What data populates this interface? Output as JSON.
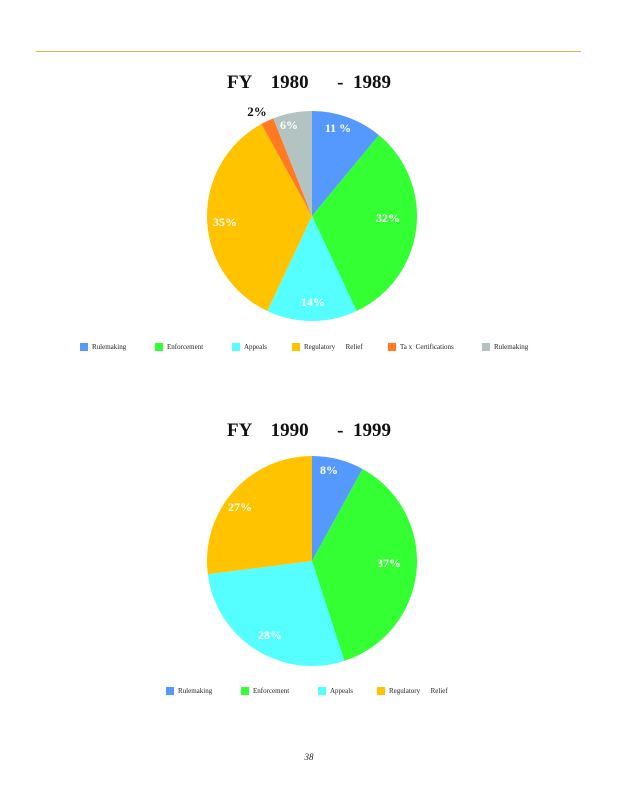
{
  "page_number": "38",
  "chart_data": [
    {
      "type": "pie",
      "title": "FY    1980      -  1989",
      "slices": [
        {
          "category": "Rulemaking",
          "value": 11,
          "label": "11 %",
          "color": "#5599ff"
        },
        {
          "category": "Enforcement",
          "value": 32,
          "label": "32%",
          "color": "#33ff33"
        },
        {
          "category": "Appeals",
          "value": 14,
          "label": "14%",
          "color": "#55ffff"
        },
        {
          "category": "Regulatory Relief",
          "value": 35,
          "label": "35%",
          "color": "#ffc300"
        },
        {
          "category": "Tax Certifications",
          "value": 2,
          "label": "2%",
          "color": "#ff7a22"
        },
        {
          "category": "Rulemaking",
          "value": 6,
          "label": "6%",
          "color": "#b3c3c1"
        }
      ],
      "legend": [
        {
          "label": "Rulemaking",
          "color": "#5599ff"
        },
        {
          "label": "Enforcement",
          "color": "#33ff33"
        },
        {
          "label": "Appeals",
          "color": "#55ffff"
        },
        {
          "label": "Regulatory      Relief",
          "color": "#ffc300"
        },
        {
          "label": "Ta x  Certifications",
          "color": "#ff7a22"
        },
        {
          "label": "Rulemaking",
          "color": "#b3c3c1"
        }
      ],
      "legend_position": "bottom"
    },
    {
      "type": "pie",
      "title": "FY    1990      -  1999",
      "slices": [
        {
          "category": "Rulemaking",
          "value": 8,
          "label": "8%",
          "color": "#5599ff"
        },
        {
          "category": "Enforcement",
          "value": 37,
          "label": "37%",
          "color": "#33ff33"
        },
        {
          "category": "Appeals",
          "value": 28,
          "label": "28%",
          "color": "#55ffff"
        },
        {
          "category": "Regulatory Relief",
          "value": 27,
          "label": "27%",
          "color": "#ffc300"
        }
      ],
      "legend": [
        {
          "label": "Rulemaking",
          "color": "#5599ff"
        },
        {
          "label": "Enforcement",
          "color": "#33ff33"
        },
        {
          "label": "Appeals",
          "color": "#55ffff"
        },
        {
          "label": "Regulatory      Relief",
          "color": "#ffc300"
        }
      ],
      "legend_position": "bottom"
    }
  ]
}
